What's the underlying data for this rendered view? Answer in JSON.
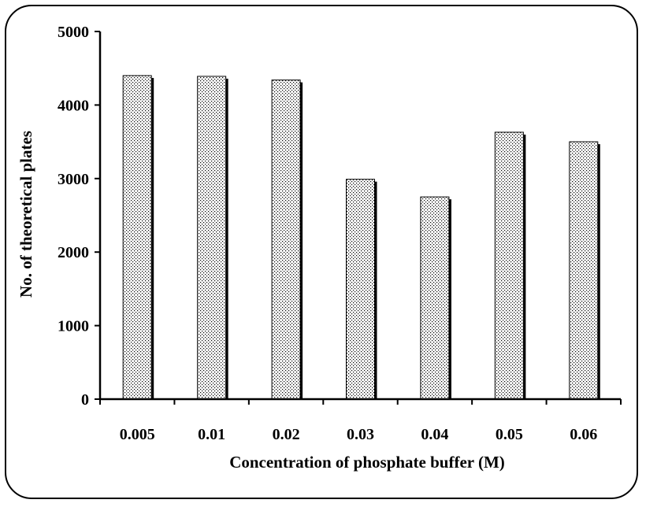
{
  "chart_data": {
    "type": "bar",
    "title": "",
    "xlabel": "Concentration of phosphate buffer  (M)",
    "ylabel": "No. of theoretical plates",
    "categories": [
      "0.005",
      "0.01",
      "0.02",
      "0.03",
      "0.04",
      "0.05",
      "0.06"
    ],
    "values": [
      4400,
      4390,
      4340,
      2990,
      2750,
      3630,
      3500
    ],
    "ylim": [
      0,
      5000
    ],
    "yticks": [
      "0",
      "1000",
      "2000",
      "3000",
      "4000",
      "5000"
    ],
    "grid": false,
    "legend": "none",
    "bar_fill_pattern": "dotted",
    "colors": {
      "bar_fill": "#ffffff",
      "bar_dots": "#000000",
      "bar_shadow": "#000000",
      "axis": "#000000"
    }
  }
}
